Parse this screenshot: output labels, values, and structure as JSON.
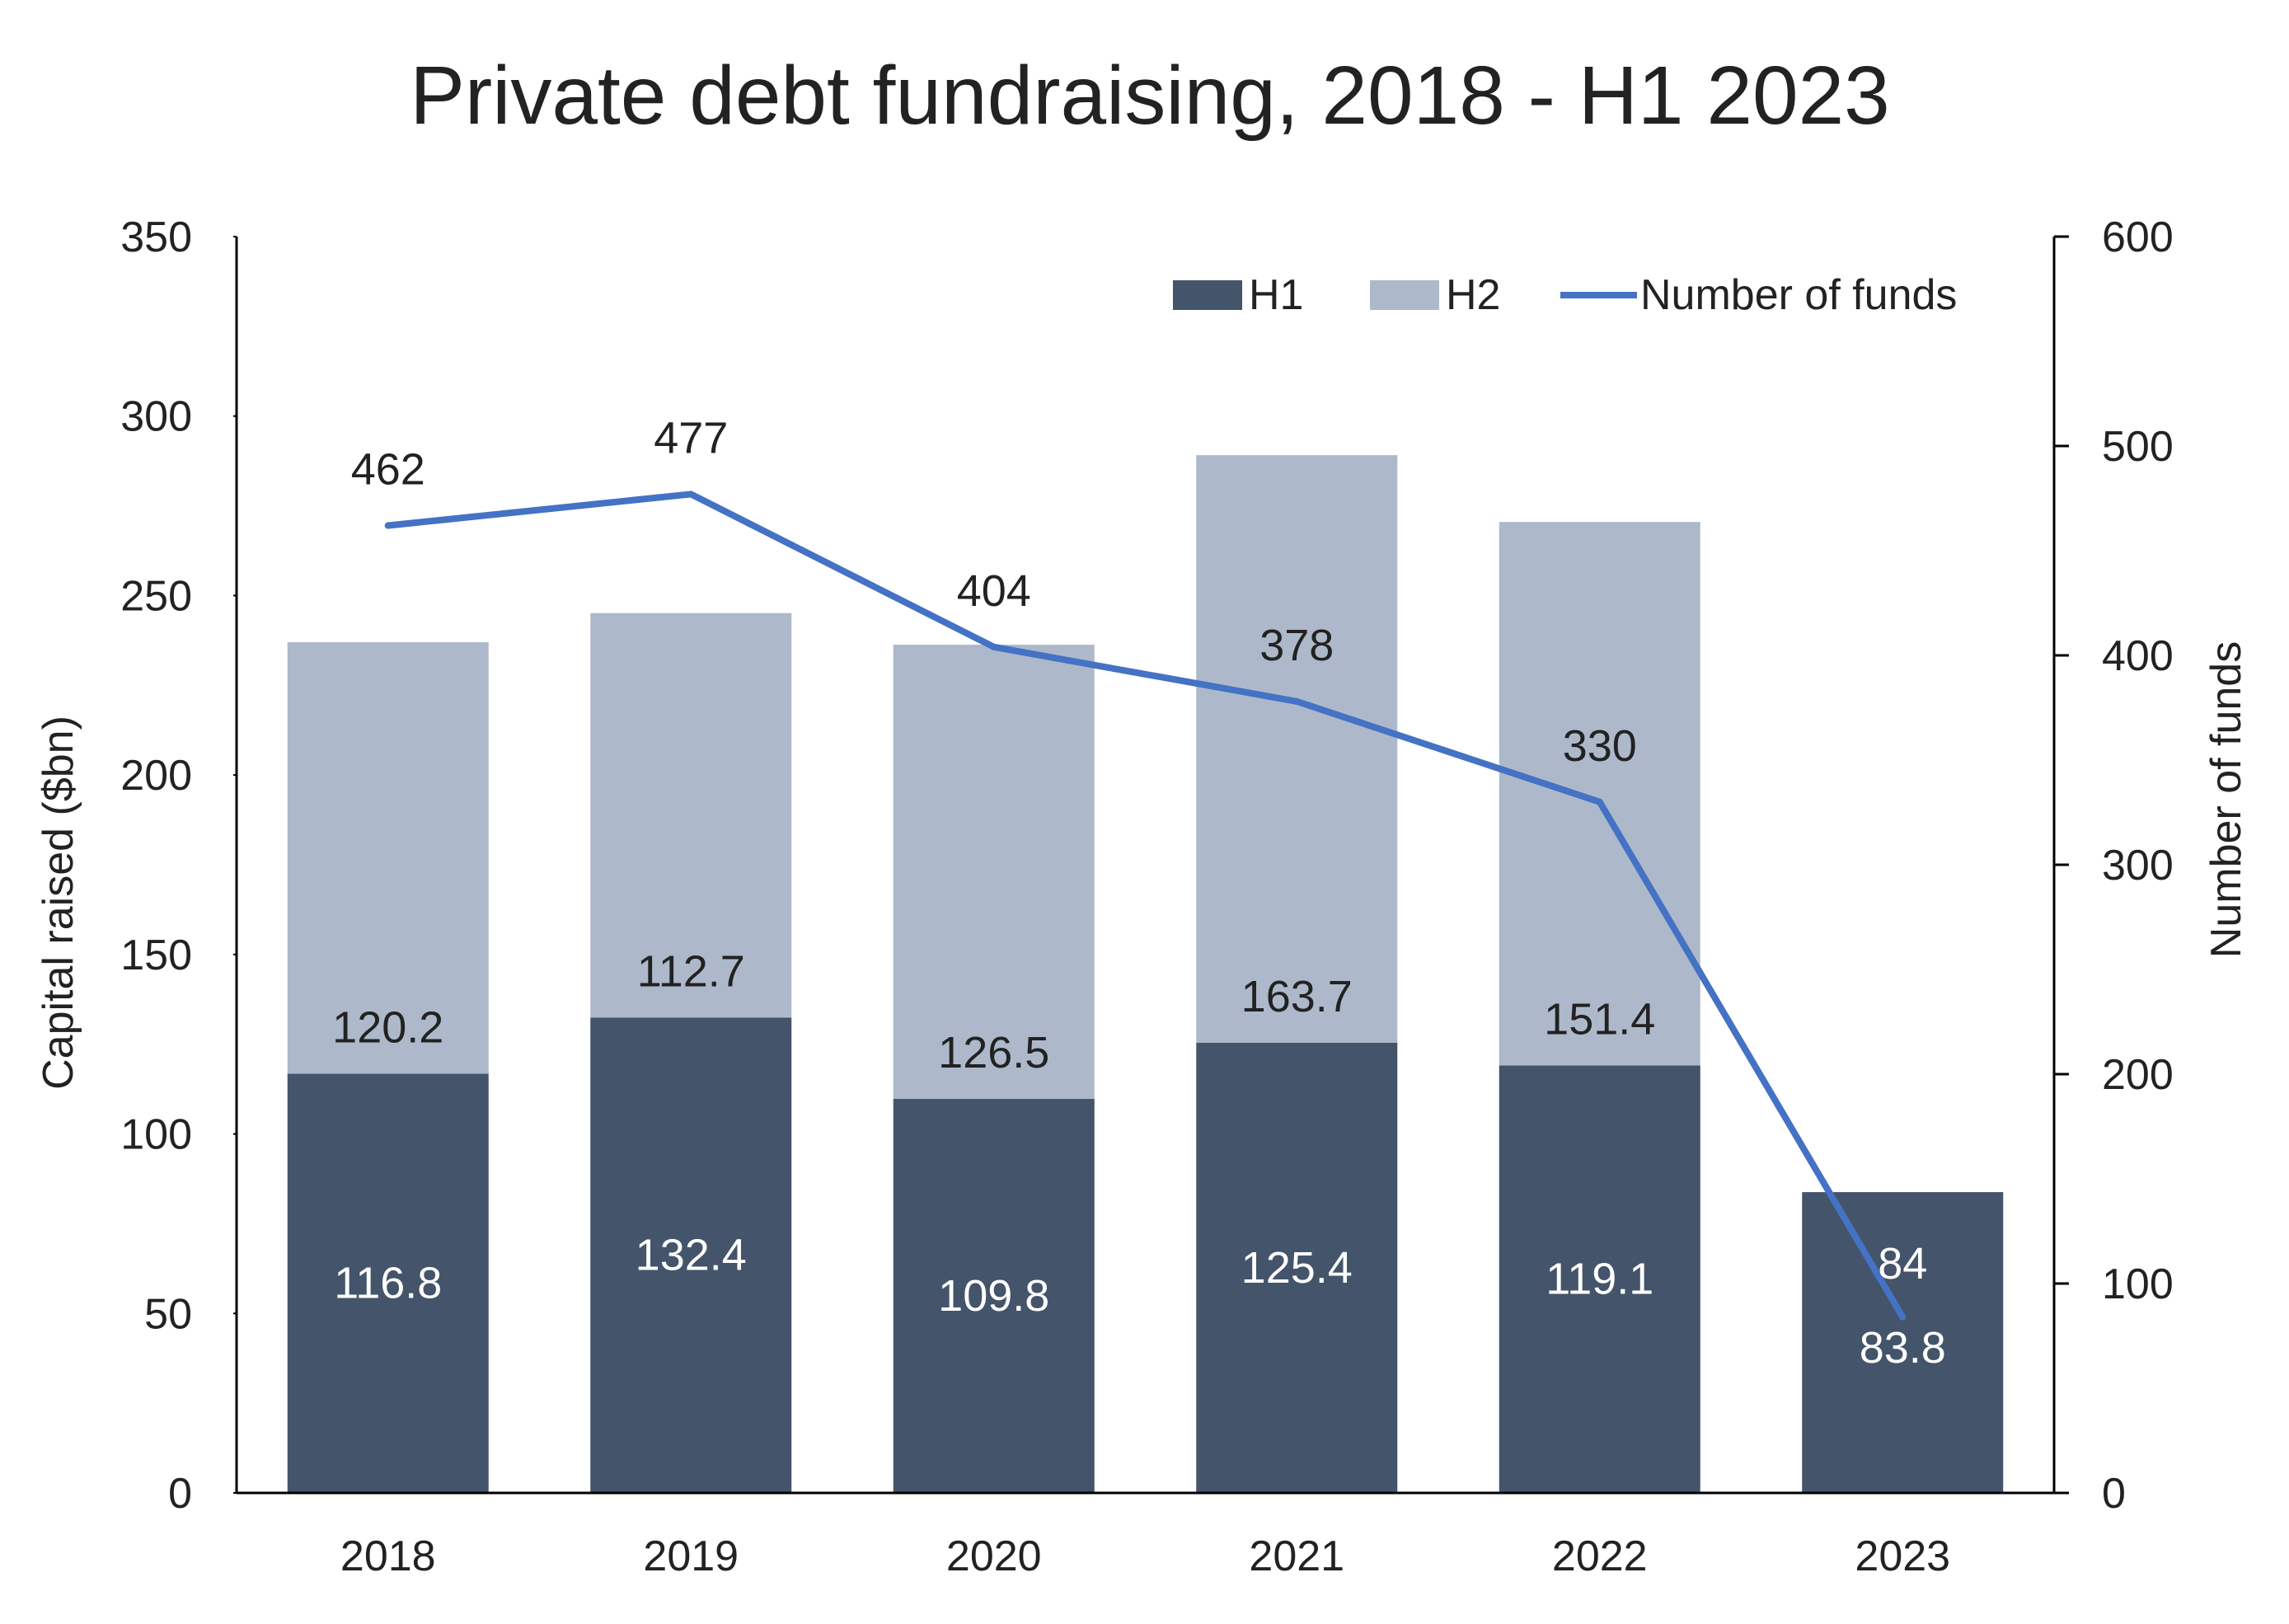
{
  "chart_data": {
    "type": "bar",
    "title": "Private debt fundraising, 2018 - H1 2023",
    "ylabel": "Capital raised ($bn)",
    "y2label": "Number of funds",
    "categories": [
      "2018",
      "2019",
      "2020",
      "2021",
      "2022",
      "2023"
    ],
    "ylim": [
      0,
      350
    ],
    "yticks": [
      "0",
      "50",
      "100",
      "150",
      "200",
      "250",
      "300",
      "350"
    ],
    "y2lim": [
      0,
      600
    ],
    "y2ticks": [
      "0",
      "100",
      "200",
      "300",
      "400",
      "500",
      "600"
    ],
    "stacked": true,
    "series": [
      {
        "name": "H1",
        "kind": "bar",
        "axis": "left",
        "color": "#44546a",
        "values": [
          116.8,
          132.4,
          109.8,
          125.4,
          119.1,
          83.8
        ],
        "labels": [
          "116.8",
          "132.4",
          "109.8",
          "125.4",
          "119.1",
          "83.8"
        ]
      },
      {
        "name": "H2",
        "kind": "bar",
        "axis": "left",
        "color": "#adb9ca",
        "values": [
          120.2,
          112.7,
          126.5,
          163.7,
          151.4,
          null
        ],
        "labels": [
          "120.2",
          "112.7",
          "126.5",
          "163.7",
          "151.4",
          ""
        ]
      },
      {
        "name": "Number of funds",
        "kind": "line",
        "axis": "right",
        "color": "#4472c4",
        "values": [
          462,
          477,
          404,
          378,
          330,
          84
        ],
        "labels": [
          "462",
          "477",
          "404",
          "378",
          "330",
          "84"
        ]
      }
    ],
    "legend_position": "top-right",
    "grid": false
  }
}
